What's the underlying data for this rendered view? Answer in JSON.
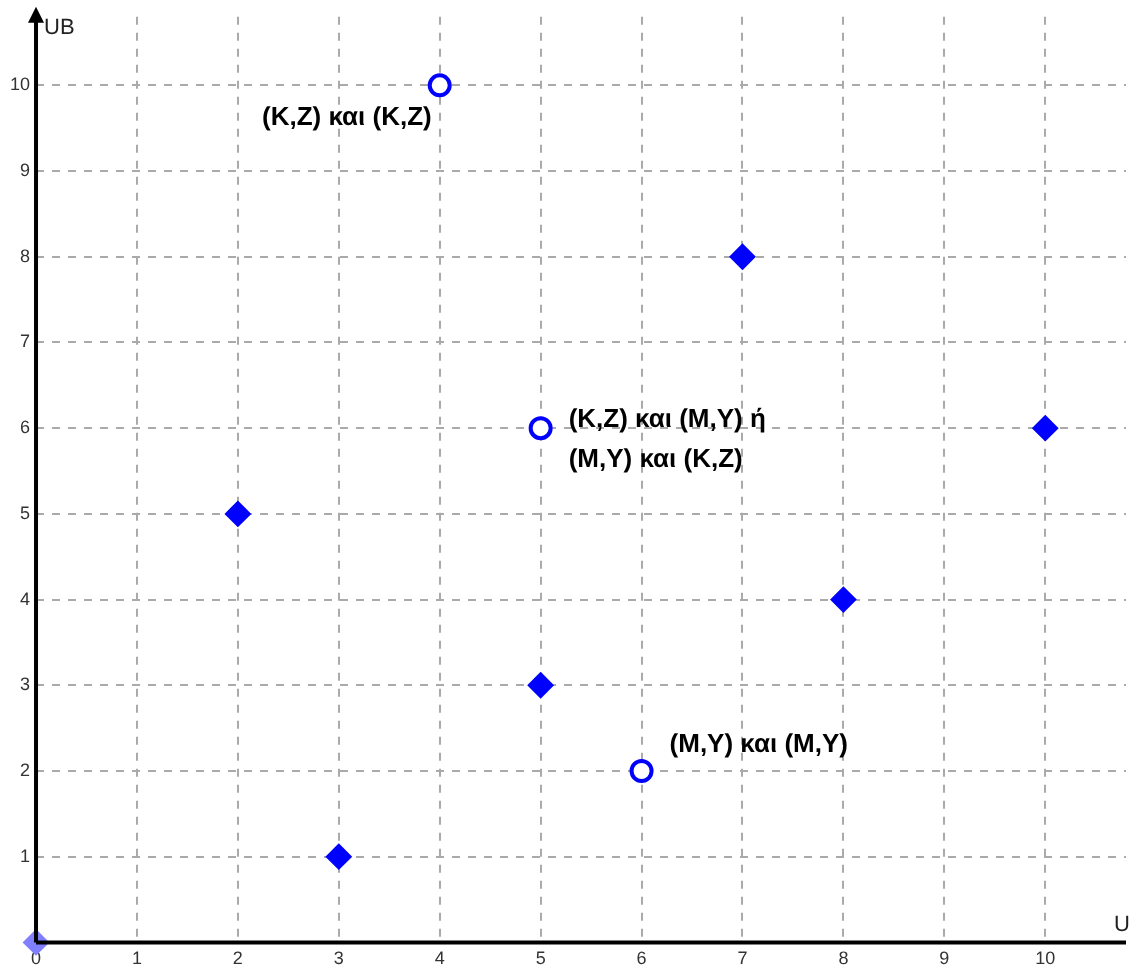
{
  "chart_data": {
    "type": "scatter",
    "xlabel": "U",
    "ylabel": "UB",
    "series": [
      {
        "marker": "diamond",
        "x": [
          0,
          2,
          3,
          5,
          7,
          8,
          10
        ],
        "values": [
          0,
          5,
          1,
          3,
          8,
          4,
          6
        ],
        "colors": [
          "#8080ff",
          "#0000ff",
          "#0000ff",
          "#0000ff",
          "#0000ff",
          "#0000ff",
          "#0000ff"
        ]
      },
      {
        "marker": "circle",
        "color": "#0000ff",
        "x": [
          4,
          5,
          6
        ],
        "values": [
          10,
          6,
          2
        ]
      }
    ],
    "xlim": [
      0,
      10.8
    ],
    "ylim": [
      0,
      10.8
    ],
    "xticks": [
      0,
      1,
      2,
      3,
      4,
      5,
      6,
      7,
      8,
      9,
      10
    ],
    "yticks": [
      {
        "value": 0,
        "label": null
      },
      1,
      2,
      3,
      4,
      5,
      6,
      7,
      8,
      9,
      10
    ],
    "grid": true,
    "legend": false,
    "annotations": [
      {
        "text": "(K,Z) και (K,Z)",
        "x": 4,
        "y": 10
      },
      {
        "text": "(K,Z) και (M,Y) ή\n(M,Y) και (K,Z)",
        "x": 5,
        "y": 6
      },
      {
        "text": "(M,Y) και (M,Y)",
        "x": 6,
        "y": 2
      }
    ]
  }
}
